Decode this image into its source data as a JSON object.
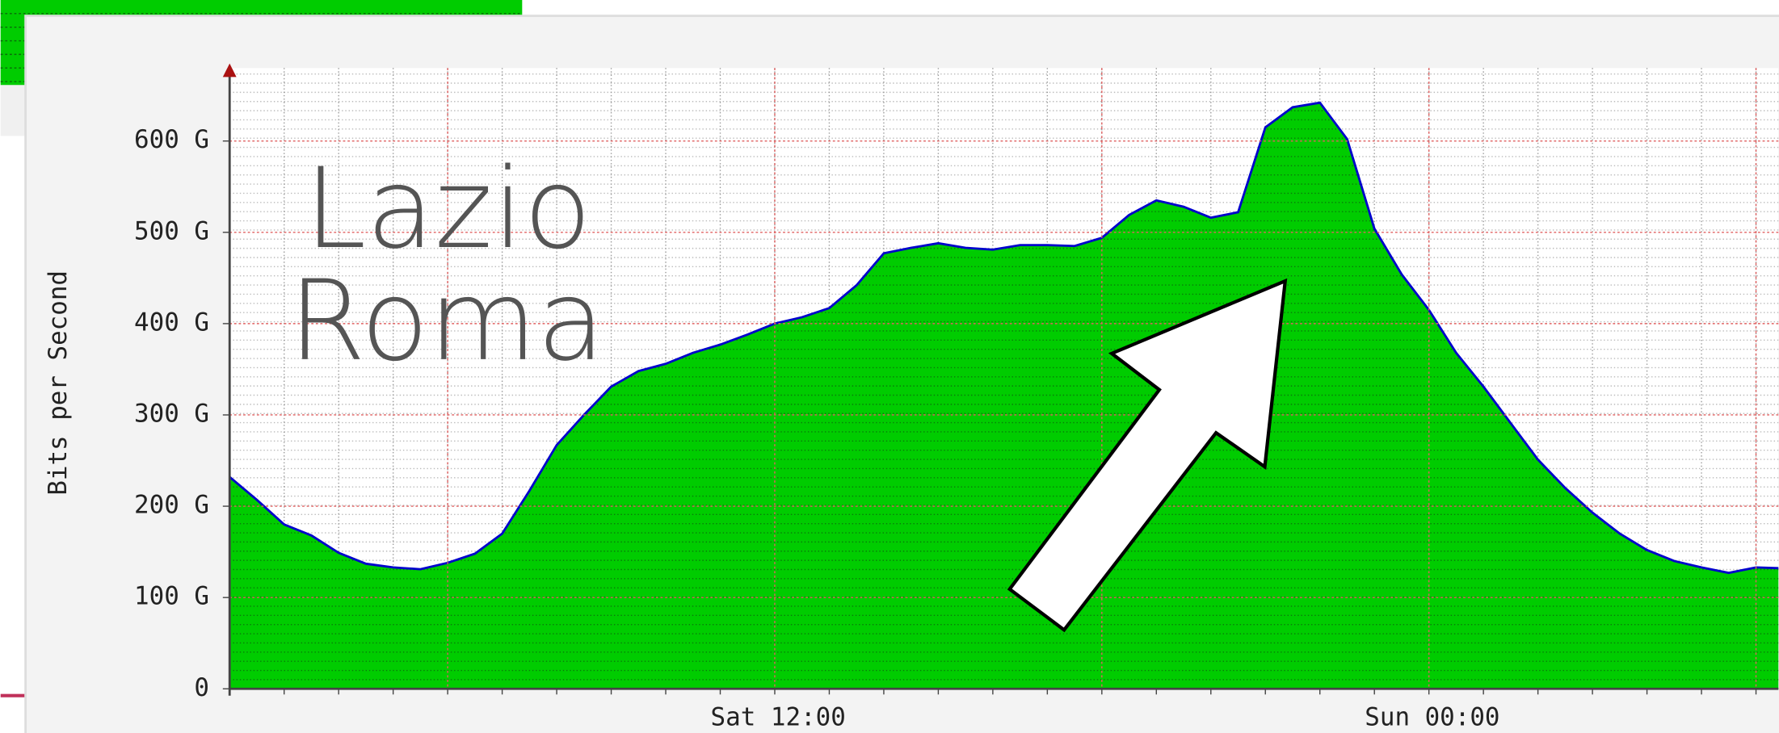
{
  "chart_data": {
    "type": "area",
    "y_label": "Bits per Second",
    "annotations": [
      "Lazio",
      "Roma"
    ],
    "color": "#00cc00",
    "edge_color": "#0000cc",
    "grid": true,
    "categories": [
      null,
      null,
      null,
      null,
      null,
      null,
      null,
      null,
      null,
      null,
      null,
      null,
      null,
      null,
      null,
      null,
      null,
      null,
      null,
      null,
      "Sat 12:00",
      null,
      null,
      null,
      null,
      null,
      null,
      null,
      null,
      null,
      null,
      null,
      null,
      null,
      null,
      null,
      null,
      null,
      null,
      null,
      null,
      null,
      null,
      null,
      "Sun 00:00",
      null,
      null,
      null,
      null,
      null,
      null,
      null,
      null,
      null,
      null,
      null,
      null,
      null
    ],
    "values": [
      232,
      207,
      180,
      168,
      149,
      137,
      133,
      131,
      138,
      148,
      170,
      217,
      267,
      300,
      331,
      348,
      356,
      368,
      377,
      388,
      400,
      407,
      417,
      442,
      477,
      483,
      488,
      483,
      481,
      486,
      486,
      485,
      494,
      519,
      535,
      528,
      516,
      522,
      615,
      637,
      642,
      602,
      504,
      454,
      415,
      368,
      331,
      291,
      251,
      220,
      193,
      170,
      152,
      140,
      133,
      127,
      133,
      132
    ],
    "ylim": [
      0,
      680
    ],
    "yticks": [
      0,
      {
        "value": 100,
        "label": "100 G"
      },
      {
        "value": 200,
        "label": "200 G"
      },
      {
        "value": 300,
        "label": "300 G"
      },
      {
        "value": 400,
        "label": "400 G"
      },
      {
        "value": 500,
        "label": "500 G"
      },
      {
        "value": 600,
        "label": "600 G"
      }
    ]
  }
}
